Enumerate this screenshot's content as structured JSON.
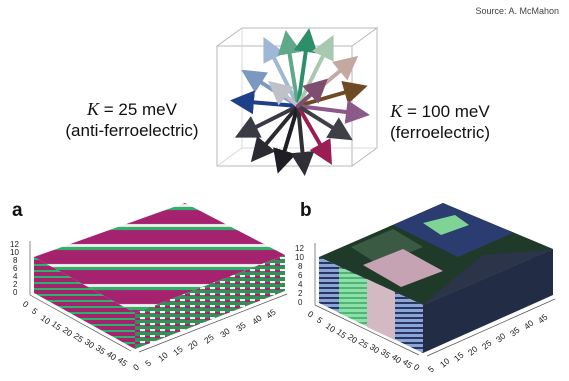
{
  "source_credit": "Source: A. McMahon",
  "left_label": {
    "k_symbol": "K",
    "value_text": " = 25 meV",
    "phase": "(anti-ferroelectric)"
  },
  "right_label": {
    "k_symbol": "K",
    "value_text": " = 100 meV",
    "phase": "(ferroelectric)"
  },
  "panel_a": {
    "letter": "a",
    "z_ticks": [
      "12",
      "10",
      "8",
      "6",
      "4",
      "2",
      "0"
    ],
    "axis_ticks_front": [
      "0",
      "5",
      "10",
      "15",
      "20",
      "25",
      "30",
      "35",
      "40",
      "45"
    ],
    "axis_ticks_right": [
      "0",
      "5",
      "10",
      "15",
      "20",
      "25",
      "30",
      "35",
      "40",
      "45"
    ]
  },
  "panel_b": {
    "letter": "b",
    "z_ticks": [
      "12",
      "10",
      "8",
      "6",
      "4",
      "2",
      "0"
    ],
    "axis_ticks_front": [
      "0",
      "5",
      "10",
      "15",
      "20",
      "25",
      "30",
      "35",
      "40",
      "45",
      "0"
    ],
    "axis_ticks_right": [
      "5",
      "10",
      "15",
      "20",
      "25",
      "30",
      "35",
      "40",
      "45"
    ]
  },
  "colors": {
    "magenta": "#a5226f",
    "green": "#2bb36a",
    "white": "#eef1ee",
    "navy": "#1e2a56",
    "dark_green": "#1f3a28",
    "light_green": "#7fd495",
    "pink": "#c6a3b3",
    "dark_slate": "#2b3448"
  }
}
